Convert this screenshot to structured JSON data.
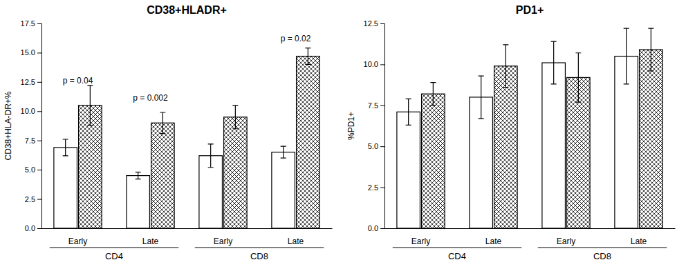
{
  "chart_data": [
    {
      "type": "bar",
      "title": "CD38+HLADR+",
      "y_label": "CD38+HLA-DR+%",
      "categories": [
        "Early",
        "Late",
        "Early",
        "Late"
      ],
      "category_groups": [
        "CD4",
        "CD4",
        "CD8",
        "CD8"
      ],
      "series": [
        {
          "values": [
            6.9,
            4.5,
            6.2,
            6.5
          ],
          "errors": [
            0.7,
            0.3,
            1.0,
            0.5
          ]
        },
        {
          "values": [
            10.5,
            9.0,
            9.5,
            14.7
          ],
          "errors": [
            1.7,
            0.9,
            1.0,
            0.7
          ]
        }
      ],
      "annotations": [
        {
          "text": "p = 0.04",
          "category": 0,
          "y": 12.2
        },
        {
          "text": "p = 0.002",
          "category": 1,
          "y": 10.7
        },
        {
          "text": "p = 0.02",
          "category": 3,
          "y": 15.8
        }
      ],
      "ylim": [
        0,
        17.5
      ],
      "yticks": [
        {
          "value": 0,
          "label": "0.0"
        },
        2.5,
        {
          "value": 5,
          "label": "5.0"
        },
        7.5,
        {
          "value": 10,
          "label": "10.0"
        },
        12.5,
        {
          "value": 15,
          "label": "15.0"
        },
        17.5
      ],
      "grid": false
    },
    {
      "type": "bar",
      "title": "PD1+",
      "y_label": "%PD1+",
      "categories": [
        "Early",
        "Late",
        "Early",
        "Late"
      ],
      "category_groups": [
        "CD4",
        "CD4",
        "CD8",
        "CD8"
      ],
      "series": [
        {
          "values": [
            7.1,
            8.0,
            10.1,
            10.5
          ],
          "errors": [
            0.8,
            1.3,
            1.3,
            1.7
          ]
        },
        {
          "values": [
            8.2,
            9.9,
            9.2,
            10.9
          ],
          "errors": [
            0.7,
            1.3,
            1.5,
            1.3
          ]
        }
      ],
      "ylim": [
        0,
        12.5
      ],
      "yticks": [
        {
          "value": 0,
          "label": "0.0"
        },
        2.5,
        {
          "value": 5,
          "label": "5.0"
        },
        7.5,
        {
          "value": 10,
          "label": "10.0"
        },
        12.5
      ],
      "grid": false
    }
  ]
}
